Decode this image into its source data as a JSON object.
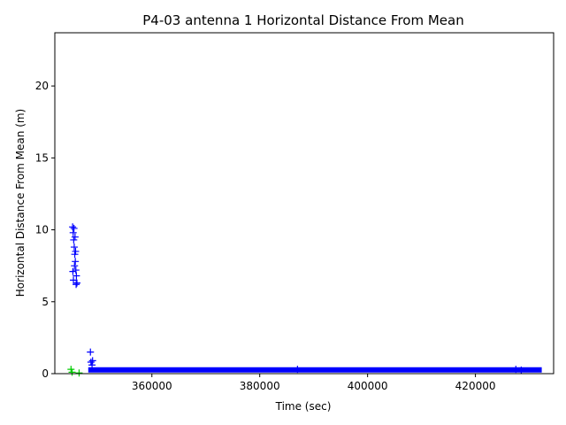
{
  "chart_data": {
    "type": "scatter",
    "title": "P4-03 antenna 1 Horizontal Distance From Mean",
    "xlabel": "Time (sec)",
    "ylabel": "Horizontal Distance From Mean (m)",
    "xlim": [
      342000,
      434500
    ],
    "ylim": [
      0,
      23.7
    ],
    "xticks": [
      360000,
      380000,
      400000,
      420000
    ],
    "xtick_labels": [
      "360000",
      "380000",
      "400000",
      "420000"
    ],
    "yticks": [
      0,
      5,
      10,
      15,
      20
    ],
    "ytick_labels": [
      "0",
      "5",
      "10",
      "15",
      "20"
    ],
    "grid": false,
    "legend": "none",
    "marker": "plus",
    "series": [
      {
        "color": "#0000ff",
        "cluster": {
          "x": [
            345300,
            345400,
            345500,
            345600,
            345700,
            345800,
            345900,
            346000,
            345450,
            345650,
            345850,
            345550,
            345750,
            345950,
            345350,
            346100
          ],
          "y": [
            10.2,
            9.8,
            9.3,
            8.8,
            8.3,
            7.8,
            7.2,
            6.8,
            6.5,
            7.5,
            8.5,
            10.1,
            9.5,
            6.2,
            7.1,
            6.3
          ]
        },
        "band": {
          "x_start": 348200,
          "x_end": 432300,
          "y": 0.2
        },
        "points": {
          "x": [
            348600,
            348700,
            348900,
            349000,
            387000,
            427500,
            428500
          ],
          "y": [
            1.5,
            0.8,
            0.6,
            0.9,
            0.3,
            0.3,
            0.25
          ]
        }
      },
      {
        "color": "#00cc00",
        "points": {
          "x": [
            345000,
            345200,
            346500
          ],
          "y": [
            0.3,
            0.1,
            0.05
          ]
        }
      }
    ]
  }
}
